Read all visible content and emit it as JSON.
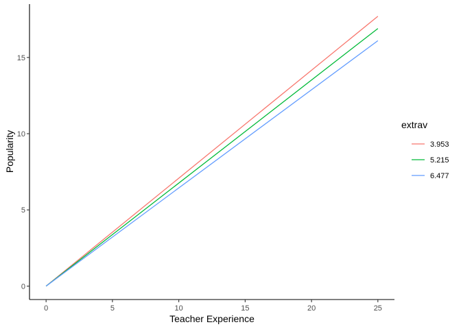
{
  "chart_data": {
    "type": "line",
    "xlabel": "Teacher Experience",
    "ylabel": "Popularity",
    "xlim": [
      -1.25,
      26.25
    ],
    "ylim": [
      -0.88,
      18.5
    ],
    "x_ticks": [
      0,
      5,
      10,
      15,
      20,
      25
    ],
    "y_ticks": [
      0,
      5,
      10,
      15
    ],
    "grid": false,
    "legend": {
      "title": "extrav",
      "position": "right"
    },
    "series": [
      {
        "name": "3.953",
        "color": "#F8766D",
        "x": [
          0,
          25
        ],
        "y": [
          0,
          17.7
        ]
      },
      {
        "name": "5.215",
        "color": "#00BA38",
        "x": [
          0,
          25
        ],
        "y": [
          0,
          16.9
        ]
      },
      {
        "name": "6.477",
        "color": "#619CFF",
        "x": [
          0,
          25
        ],
        "y": [
          0,
          16.1
        ]
      }
    ]
  }
}
